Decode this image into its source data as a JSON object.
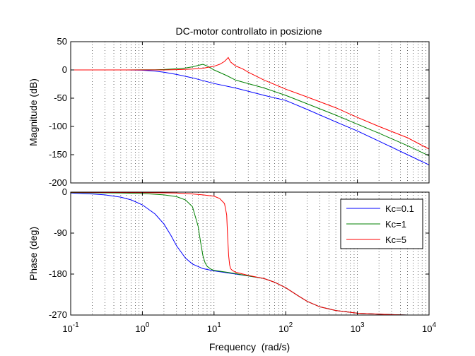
{
  "colors": {
    "Kc=0.1": "#0000ff",
    "Kc=1": "#008000",
    "Kc=5": "#ff0000"
  },
  "chart_data": [
    {
      "type": "line",
      "title": "DC-motor controllato in posizione",
      "xlabel": "",
      "ylabel": "Magnitude (dB)",
      "xscale": "log",
      "xlim": [
        0.1,
        10000
      ],
      "ylim": [
        -200,
        50
      ],
      "yticks": [
        50,
        0,
        -50,
        -100,
        -150,
        -200
      ],
      "grid": "x",
      "series": [
        {
          "name": "Kc=0.1",
          "x": [
            0.1,
            0.3,
            0.6,
            1,
            1.5,
            2,
            3,
            5,
            10,
            20,
            50,
            100,
            200,
            500,
            1000,
            2000,
            5000,
            10000
          ],
          "y": [
            0,
            0,
            0,
            -0.5,
            -2,
            -4,
            -8,
            -14,
            -24,
            -32,
            -45,
            -54,
            -70,
            -92,
            -108,
            -126,
            -150,
            -168
          ]
        },
        {
          "name": "Kc=1",
          "x": [
            0.1,
            0.3,
            0.6,
            1,
            1.5,
            2,
            3,
            4,
            5,
            6,
            7,
            8,
            10,
            15,
            20,
            50,
            100,
            200,
            500,
            1000,
            2000,
            5000,
            10000
          ],
          "y": [
            0,
            0,
            0,
            0.2,
            0.4,
            0.8,
            2,
            3.5,
            5.5,
            8,
            10,
            7,
            0,
            -10,
            -18,
            -32,
            -45,
            -60,
            -80,
            -96,
            -112,
            -134,
            -152
          ]
        },
        {
          "name": "Kc=5",
          "x": [
            0.1,
            0.3,
            0.6,
            1,
            2,
            3,
            5,
            7,
            10,
            12,
            14,
            15,
            15.8,
            17,
            20,
            25,
            30,
            50,
            100,
            200,
            500,
            1000,
            2000,
            5000,
            10000
          ],
          "y": [
            0,
            0,
            0,
            0,
            0,
            0.5,
            1.5,
            3,
            6.5,
            10,
            15,
            19,
            22,
            14,
            7,
            2,
            -4,
            -18,
            -34,
            -48,
            -67,
            -84,
            -100,
            -120,
            -140
          ]
        }
      ]
    },
    {
      "type": "line",
      "title": "",
      "xlabel": "Frequency  (rad/s)",
      "ylabel": "Phase (deg)",
      "xscale": "log",
      "xlim": [
        0.1,
        10000
      ],
      "xticks": [
        "10^-1",
        "10^0",
        "10^1",
        "10^2",
        "10^3",
        "10^4"
      ],
      "ylim": [
        -270,
        0
      ],
      "yticks": [
        0,
        -90,
        -180,
        -270
      ],
      "grid": "x",
      "legend": {
        "placement": "top-right",
        "entries": [
          "Kc=0.1",
          "Kc=1",
          "Kc=5"
        ]
      },
      "series": [
        {
          "name": "Kc=0.1",
          "x": [
            0.1,
            0.2,
            0.3,
            0.5,
            0.7,
            1,
            1.5,
            2,
            2.5,
            3,
            4,
            5,
            7,
            10,
            15,
            20,
            30,
            50,
            70,
            100,
            150,
            200,
            300,
            500,
            1000,
            2000,
            3000,
            5000,
            10000
          ],
          "y": [
            -2,
            -4,
            -6,
            -11,
            -17,
            -28,
            -48,
            -70,
            -95,
            -118,
            -145,
            -158,
            -168,
            -173,
            -177,
            -180,
            -184,
            -190,
            -198,
            -210,
            -228,
            -240,
            -252,
            -260,
            -266,
            -268,
            -269,
            -270,
            -270
          ]
        },
        {
          "name": "Kc=1",
          "x": [
            0.1,
            0.5,
            1,
            2,
            3,
            4,
            5,
            6,
            6.5,
            7,
            7.5,
            8,
            9,
            10,
            15,
            20,
            30,
            50,
            70,
            100,
            150,
            200,
            300,
            500,
            1000,
            2000,
            3000,
            5000,
            10000
          ],
          "y": [
            -1,
            -2,
            -3,
            -6,
            -10,
            -17,
            -32,
            -75,
            -110,
            -140,
            -155,
            -163,
            -169,
            -172,
            -176,
            -179,
            -184,
            -190,
            -198,
            -210,
            -228,
            -240,
            -252,
            -260,
            -266,
            -268,
            -269,
            -270,
            -270
          ]
        },
        {
          "name": "Kc=5",
          "x": [
            0.1,
            1,
            3,
            5,
            7,
            10,
            12,
            14,
            15,
            15.5,
            16,
            16.5,
            17,
            18,
            20,
            30,
            50,
            70,
            100,
            150,
            200,
            300,
            500,
            1000,
            2000,
            3000,
            5000,
            10000
          ],
          "y": [
            -0.5,
            -1,
            -2,
            -4,
            -6,
            -9,
            -14,
            -25,
            -50,
            -100,
            -140,
            -160,
            -168,
            -172,
            -176,
            -183,
            -190,
            -198,
            -210,
            -228,
            -240,
            -252,
            -260,
            -266,
            -268,
            -269,
            -270,
            -270
          ]
        }
      ]
    }
  ]
}
